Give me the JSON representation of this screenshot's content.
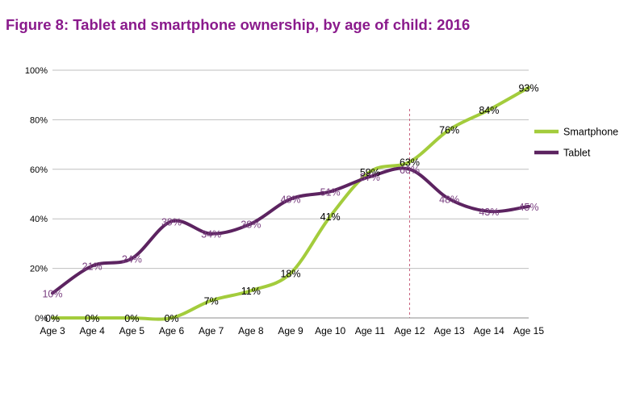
{
  "title": "Figure 8: Tablet and smartphone ownership, by age of child: 2016",
  "chart_data": {
    "type": "line",
    "title": "Figure 8: Tablet and smartphone ownership, by age of child: 2016",
    "categories": [
      "Age 3",
      "Age 4",
      "Age 5",
      "Age 6",
      "Age 7",
      "Age 8",
      "Age 9",
      "Age 10",
      "Age 11",
      "Age 12",
      "Age 13",
      "Age 14",
      "Age 15"
    ],
    "ylim": [
      0,
      100
    ],
    "y_ticks": [
      0,
      20,
      40,
      60,
      80,
      100
    ],
    "y_tick_labels": [
      "0%",
      "20%",
      "40%",
      "60%",
      "80%",
      "100%"
    ],
    "grid": true,
    "legend_position": "right",
    "series": [
      {
        "name": "Smartphone",
        "color": "#a3cc3c",
        "values": [
          0,
          0,
          0,
          0,
          7,
          11,
          18,
          41,
          59,
          63,
          76,
          84,
          93
        ],
        "labels": [
          "0%",
          "0%",
          "0%",
          "0%",
          "7%",
          "11%",
          "18%",
          "41%",
          "59%",
          "63%",
          "76%",
          "84%",
          "93%"
        ]
      },
      {
        "name": "Tablet",
        "color": "#5c2360",
        "values": [
          10,
          21,
          24,
          39,
          34,
          38,
          48,
          51,
          57,
          60,
          48,
          43,
          45
        ],
        "labels": [
          "10%",
          "21%",
          "24%",
          "39%",
          "34%",
          "38%",
          "48%",
          "51%",
          "57%",
          "60%",
          "48%",
          "43%",
          "45%"
        ]
      }
    ],
    "reference_line_category": "Age 12"
  }
}
